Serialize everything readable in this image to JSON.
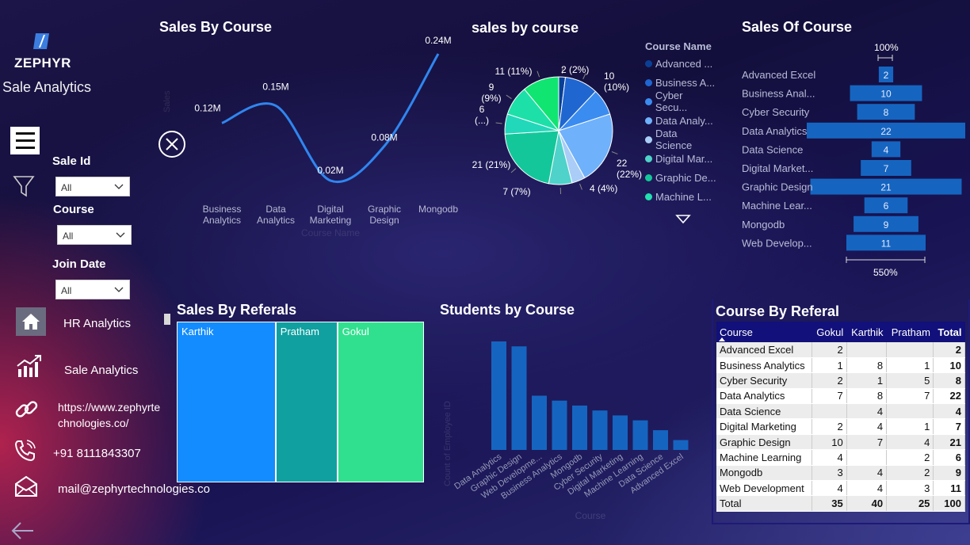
{
  "sidebar": {
    "brand": "ZEPHYR",
    "subtitle": "Sale Analytics",
    "filters": [
      {
        "label": "Sale Id",
        "value": "All"
      },
      {
        "label": "Course",
        "value": "All"
      },
      {
        "label": "Join Date",
        "value": "All"
      }
    ],
    "nav": [
      {
        "label": "HR Analytics",
        "icon": "home-icon"
      },
      {
        "label": "Sale Analytics",
        "icon": "analytics-icon"
      },
      {
        "label": "https://www.zephyrtechnologies.co/",
        "line1": "https://www.zephyrte",
        "line2": "chnologies.co/",
        "icon": "link-icon"
      },
      {
        "label": "+91 8111843307",
        "icon": "phone-icon"
      },
      {
        "label": "mail@zephyrtechnologies.co",
        "icon": "mail-icon"
      }
    ]
  },
  "colors": {
    "line": "#2f86f0",
    "bar_dark": "#1565c0",
    "table_header": "#12107a"
  },
  "line_chart": {
    "title": "Sales By Course",
    "xlabel": "Course Name",
    "ylabel": "Sales",
    "chart_data": {
      "type": "line",
      "categories": [
        "Business Analytics",
        "Data Analytics",
        "Digital Marketing",
        "Graphic Design",
        "Mongodb"
      ],
      "category_lines": [
        [
          "Business",
          "Analytics"
        ],
        [
          "Data",
          "Analytics"
        ],
        [
          "Digital",
          "Marketing"
        ],
        [
          "Graphic",
          "Design"
        ],
        [
          "Mongodb"
        ]
      ],
      "values": [
        0.12,
        0.15,
        0.02,
        0.08,
        0.24
      ],
      "labels": [
        "0.12M",
        "0.15M",
        "0.02M",
        "0.08M",
        "0.24M"
      ]
    }
  },
  "pie_chart": {
    "title": "sales by course",
    "legend_title": "Course Name",
    "legend": [
      {
        "label": "Advanced ...",
        "color": "#0a3f96"
      },
      {
        "label": "Business A...",
        "color": "#1f66d0"
      },
      {
        "label": "Cyber Secu...",
        "color": "#3b8cf0"
      },
      {
        "label": "Data Analy...",
        "color": "#6fb1fb"
      },
      {
        "label": "Data Science",
        "color": "#a9cdf7"
      },
      {
        "label": "Digital Mar...",
        "color": "#4fd2c9"
      },
      {
        "label": "Graphic De...",
        "color": "#14c79a"
      },
      {
        "label": "Machine L...",
        "color": "#22e0b0"
      }
    ],
    "chart_data": {
      "type": "pie",
      "slices": [
        {
          "name": "Advanced Excel",
          "value": 2,
          "label": "2 (2%)",
          "color": "#0a3f96"
        },
        {
          "name": "Business Analytics",
          "value": 10,
          "label": "10 (10%)",
          "color": "#1f66d0"
        },
        {
          "name": "Cyber Security",
          "value": 8,
          "label": "",
          "color": "#3b8cf0"
        },
        {
          "name": "Data Analytics",
          "value": 22,
          "label": "22 (22%)",
          "color": "#6fb1fb"
        },
        {
          "name": "Data Science",
          "value": 4,
          "label": "4 (4%)",
          "color": "#a9cdf7"
        },
        {
          "name": "Digital Marketing",
          "value": 7,
          "label": "7 (7%)",
          "color": "#4fd2c9"
        },
        {
          "name": "Graphic Design",
          "value": 21,
          "label": "21 (21%)",
          "color": "#14c79a"
        },
        {
          "name": "Machine Learning",
          "value": 6,
          "label": "6 (...)",
          "color": "#22d8ba"
        },
        {
          "name": "Mongodb",
          "value": 9,
          "label": "9 (9%)",
          "color": "#1de0a8"
        },
        {
          "name": "Web Development",
          "value": 11,
          "label": "11 (11%)",
          "color": "#10e572"
        }
      ]
    }
  },
  "funnel_chart": {
    "title": "Sales Of Course",
    "top_label": "100%",
    "bottom_label": "550%",
    "chart_data": {
      "type": "bar",
      "categories": [
        "Advanced Excel",
        "Business Anal...",
        "Cyber Security",
        "Data Analytics",
        "Data Science",
        "Digital Market...",
        "Graphic Design",
        "Machine Lear...",
        "Mongodb",
        "Web Develop..."
      ],
      "values": [
        2,
        10,
        8,
        22,
        4,
        7,
        21,
        6,
        9,
        11
      ]
    }
  },
  "treemap": {
    "title": "Sales By Referals",
    "chart_data": {
      "type": "treemap",
      "items": [
        {
          "name": "Karthik",
          "value": 40,
          "color": "#138cff"
        },
        {
          "name": "Pratham",
          "value": 25,
          "color": "#10a0a0"
        },
        {
          "name": "Gokul",
          "value": 35,
          "color": "#31e08f"
        }
      ]
    }
  },
  "bar_chart": {
    "title": "Students by Course",
    "xlabel": "Course",
    "ylabel": "Count of Employee ID",
    "chart_data": {
      "type": "bar",
      "categories": [
        "Data Analytics",
        "Graphic Design",
        "Web Developme...",
        "Business Analytics",
        "Mongodb",
        "Cyber Security",
        "Digital Marketing",
        "Machine Learning",
        "Data Science",
        "Advanced Excel"
      ],
      "values": [
        22,
        21,
        11,
        10,
        9,
        8,
        7,
        6,
        4,
        2
      ]
    }
  },
  "table": {
    "title": "Course By Referal",
    "columns": [
      "Course",
      "Gokul",
      "Karthik",
      "Pratham",
      "Total"
    ],
    "rows": [
      [
        "Advanced Excel",
        "2",
        "",
        "",
        "2"
      ],
      [
        "Business Analytics",
        "1",
        "8",
        "1",
        "10"
      ],
      [
        "Cyber Security",
        "2",
        "1",
        "5",
        "8"
      ],
      [
        "Data Analytics",
        "7",
        "8",
        "7",
        "22"
      ],
      [
        "Data Science",
        "",
        "4",
        "",
        "4"
      ],
      [
        "Digital Marketing",
        "2",
        "4",
        "1",
        "7"
      ],
      [
        "Graphic Design",
        "10",
        "7",
        "4",
        "21"
      ],
      [
        "Machine Learning",
        "4",
        "",
        "2",
        "6"
      ],
      [
        "Mongodb",
        "3",
        "4",
        "2",
        "9"
      ],
      [
        "Web Development",
        "4",
        "4",
        "3",
        "11"
      ]
    ],
    "total": [
      "Total",
      "35",
      "40",
      "25",
      "100"
    ]
  }
}
